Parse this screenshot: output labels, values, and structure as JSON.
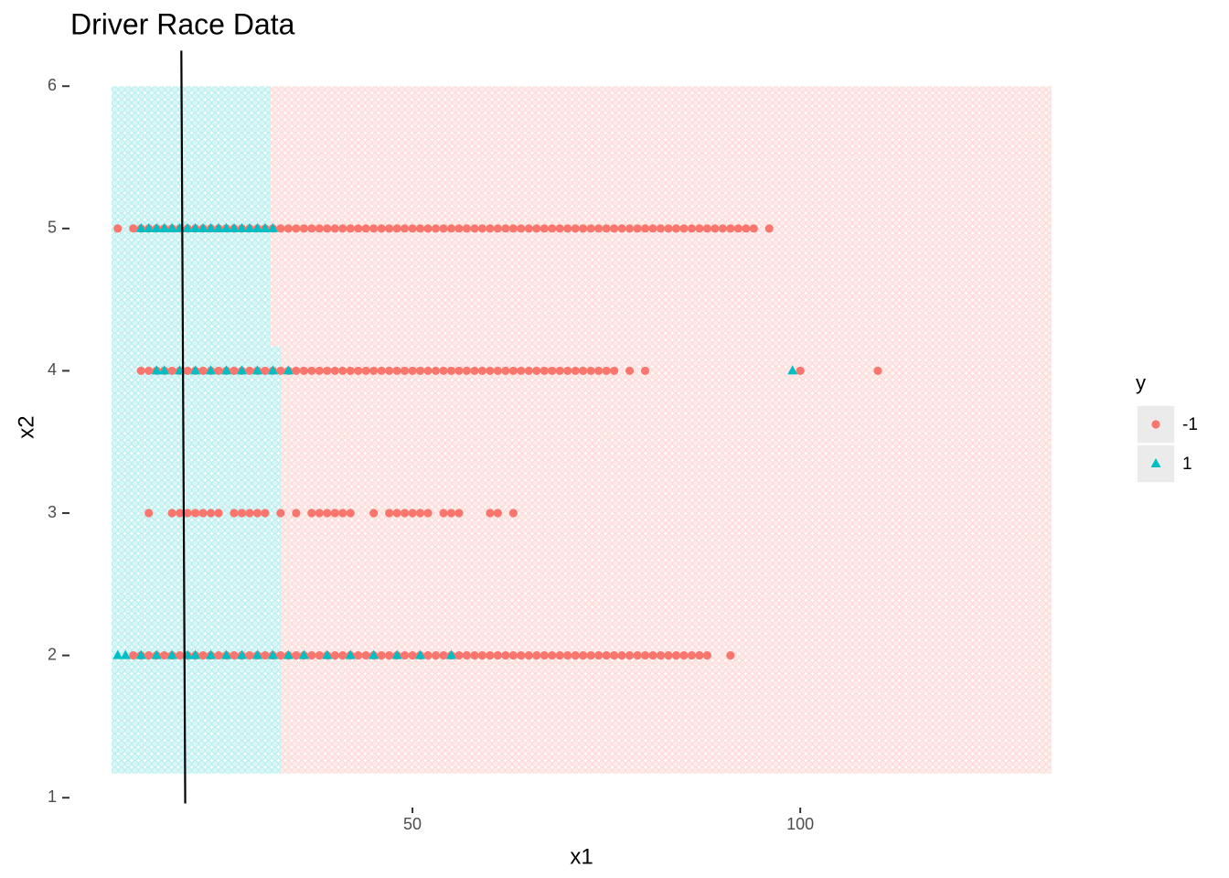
{
  "chart_data": {
    "type": "scatter",
    "title": "Driver Race Data",
    "x_label": "x1",
    "y_label": "x2",
    "xlim": [
      6.25,
      138.3
    ],
    "ylim": [
      0.95,
      6.22
    ],
    "xticks": [
      50,
      100
    ],
    "yticks": [
      1,
      2,
      3,
      4,
      5,
      6
    ],
    "legend_title": "y",
    "legend": "right",
    "line": {
      "x": [
        20.2,
        20.7
      ],
      "y": [
        6.25,
        0.96
      ],
      "color": "#000000"
    },
    "series": [
      {
        "name": "-1",
        "color": "#F8766D",
        "marker": "circle",
        "regions": [
          [
            31.7,
            132.4,
            4.17,
            6.0
          ],
          [
            33.1,
            132.4,
            1.17,
            4.17
          ]
        ],
        "rows": [
          {
            "y": 5,
            "x": [
              12,
              14,
              15,
              16,
              17,
              18,
              19,
              20,
              21,
              22,
              23,
              24,
              25,
              26,
              27,
              28,
              29,
              30,
              31,
              32,
              33,
              34,
              35,
              36,
              37,
              38,
              39,
              40,
              41,
              42,
              43,
              44,
              45,
              46,
              47,
              48,
              49,
              50,
              51,
              52,
              53,
              54,
              55,
              56,
              57,
              58,
              59,
              60,
              61,
              62,
              63,
              64,
              65,
              66,
              67,
              68,
              69,
              70,
              71,
              72,
              73,
              74,
              75,
              76,
              77,
              78,
              79,
              80,
              81,
              82,
              83,
              84,
              85,
              86,
              87,
              88,
              89,
              90,
              91,
              92,
              93,
              94,
              96
            ]
          },
          {
            "y": 4,
            "x": [
              15,
              16,
              17,
              18,
              19,
              20,
              21,
              22,
              23,
              24,
              25,
              26,
              27,
              28,
              29,
              30,
              31,
              32,
              33,
              34,
              35,
              36,
              37,
              38,
              39,
              40,
              41,
              42,
              43,
              44,
              45,
              46,
              47,
              48,
              49,
              50,
              51,
              52,
              53,
              54,
              55,
              56,
              57,
              58,
              59,
              60,
              61,
              62,
              63,
              64,
              65,
              66,
              67,
              68,
              69,
              70,
              71,
              72,
              73,
              74,
              75,
              76,
              78,
              80,
              100,
              110
            ]
          },
          {
            "y": 3,
            "x": [
              16,
              19,
              20,
              21,
              22,
              23,
              24,
              25,
              27,
              28,
              29,
              30,
              31,
              33,
              35,
              37,
              38,
              39,
              40,
              41,
              42,
              45,
              47,
              48,
              49,
              50,
              51,
              52,
              54,
              55,
              56,
              60,
              61,
              63
            ]
          },
          {
            "y": 2,
            "x": [
              14,
              15,
              16,
              17,
              18,
              19,
              20,
              21,
              22,
              23,
              24,
              25,
              26,
              27,
              28,
              29,
              30,
              31,
              32,
              33,
              34,
              35,
              36,
              37,
              38,
              39,
              40,
              41,
              42,
              43,
              44,
              45,
              46,
              47,
              48,
              49,
              50,
              51,
              52,
              53,
              54,
              55,
              56,
              57,
              58,
              59,
              60,
              61,
              62,
              63,
              64,
              65,
              66,
              67,
              68,
              69,
              70,
              71,
              72,
              73,
              74,
              75,
              76,
              77,
              78,
              79,
              80,
              81,
              82,
              83,
              84,
              85,
              86,
              87,
              88,
              91
            ]
          }
        ]
      },
      {
        "name": "1",
        "color": "#00BFC4",
        "marker": "triangle",
        "regions": [
          [
            11.2,
            31.7,
            4.17,
            6.0
          ],
          [
            11.2,
            33.1,
            1.17,
            4.17
          ]
        ],
        "rows": [
          {
            "y": 5,
            "x": [
              15,
              16,
              17,
              18,
              19,
              20,
              21,
              22,
              23,
              24,
              25,
              26,
              27,
              28,
              29,
              30,
              31,
              32
            ]
          },
          {
            "y": 4,
            "x": [
              17,
              18,
              20,
              22,
              24,
              26,
              28,
              30,
              32,
              34,
              99
            ]
          },
          {
            "y": 2,
            "x": [
              12,
              13,
              15,
              17,
              19,
              21,
              22,
              24,
              26,
              28,
              30,
              32,
              34,
              36,
              39,
              42,
              45,
              48,
              51,
              55
            ]
          }
        ]
      }
    ]
  }
}
